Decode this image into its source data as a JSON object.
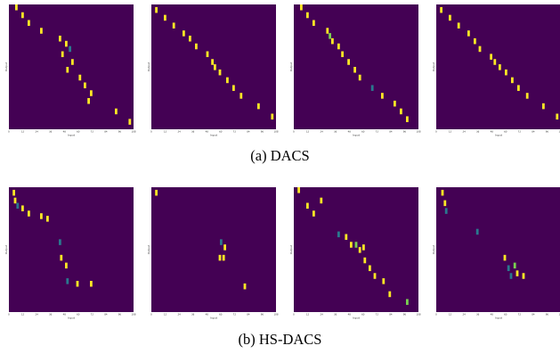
{
  "colors": {
    "background": "#440154",
    "yellow": "#fde725",
    "green": "#7ad151",
    "teal": "#2a788e"
  },
  "groups": [
    {
      "caption": "(a) DACS"
    },
    {
      "caption": "(b) HS-DACS"
    }
  ],
  "chart_data": [
    {
      "type": "heatmap",
      "xlabel": "Input",
      "ylabel": "Output",
      "xticks": [
        "0",
        "12",
        "24",
        "36",
        "48",
        "60",
        "72",
        "84",
        "96",
        "108"
      ],
      "cells": [
        [
          0.5,
          0,
          1
        ],
        [
          1,
          3,
          1
        ],
        [
          1.5,
          6,
          1
        ],
        [
          2.5,
          9,
          1
        ],
        [
          4,
          12,
          1
        ],
        [
          4.5,
          14,
          1
        ],
        [
          4.8,
          16,
          0.5
        ],
        [
          4.2,
          18,
          1
        ],
        [
          5,
          21,
          1
        ],
        [
          4.6,
          24,
          1
        ],
        [
          5.6,
          27,
          1
        ],
        [
          6,
          30,
          1
        ],
        [
          6.5,
          33,
          1
        ],
        [
          6.3,
          36,
          1
        ],
        [
          8.5,
          40,
          1
        ],
        [
          9.6,
          44,
          1
        ]
      ]
    },
    {
      "type": "heatmap",
      "xlabel": "Input",
      "ylabel": "Output",
      "xticks": [
        "0",
        "12",
        "24",
        "36",
        "48",
        "60",
        "72",
        "84",
        "96",
        "108"
      ],
      "cells": [
        [
          0.3,
          1,
          1
        ],
        [
          1,
          4,
          1
        ],
        [
          1.7,
          7,
          1
        ],
        [
          2.5,
          10,
          1
        ],
        [
          3,
          12,
          1
        ],
        [
          3.5,
          15,
          1
        ],
        [
          4.4,
          18,
          1
        ],
        [
          4.8,
          21,
          1
        ],
        [
          5,
          23,
          1
        ],
        [
          5.4,
          25,
          1
        ],
        [
          6,
          28,
          1
        ],
        [
          6.5,
          31,
          1
        ],
        [
          7.1,
          34,
          1
        ],
        [
          8.5,
          38,
          1
        ],
        [
          9.6,
          42,
          1
        ]
      ]
    },
    {
      "type": "heatmap",
      "xlabel": "Input",
      "ylabel": "Output",
      "xticks": [
        "0",
        "12",
        "24",
        "36",
        "48",
        "60",
        "72",
        "84",
        "96",
        "108"
      ],
      "cells": [
        [
          0.5,
          0,
          1
        ],
        [
          1,
          3,
          1
        ],
        [
          1.5,
          6,
          1
        ],
        [
          2.6,
          9,
          1
        ],
        [
          2.8,
          11,
          0.7
        ],
        [
          3,
          13,
          1
        ],
        [
          3.5,
          15,
          1
        ],
        [
          3.8,
          18,
          1
        ],
        [
          4.3,
          21,
          1
        ],
        [
          4.8,
          24,
          1
        ],
        [
          5.2,
          27,
          1
        ],
        [
          6.2,
          31,
          0.4
        ],
        [
          7,
          34,
          1
        ],
        [
          8,
          37,
          1
        ],
        [
          8.5,
          40,
          1
        ],
        [
          9,
          43,
          1
        ]
      ]
    },
    {
      "type": "heatmap",
      "xlabel": "Input",
      "ylabel": "Output",
      "xticks": [
        "0",
        "12",
        "24",
        "36",
        "48",
        "60",
        "72",
        "84",
        "96",
        "108"
      ],
      "cells": [
        [
          0.3,
          1,
          1
        ],
        [
          1,
          4,
          1
        ],
        [
          1.7,
          7,
          1
        ],
        [
          2.5,
          10,
          1
        ],
        [
          3,
          13,
          1
        ],
        [
          3.4,
          16,
          1
        ],
        [
          4.3,
          19,
          1
        ],
        [
          4.6,
          21,
          1
        ],
        [
          5,
          23,
          1
        ],
        [
          5.5,
          25,
          1
        ],
        [
          6,
          28,
          1
        ],
        [
          6.5,
          31,
          1
        ],
        [
          7.2,
          34,
          1
        ],
        [
          8.5,
          38,
          1
        ],
        [
          9.6,
          42,
          1
        ]
      ]
    },
    {
      "type": "heatmap",
      "xlabel": "Input",
      "ylabel": "Output",
      "xticks": [
        "0",
        "12",
        "24",
        "36",
        "48",
        "60",
        "72",
        "84",
        "96",
        "108"
      ],
      "cells": [
        [
          0.3,
          1,
          1
        ],
        [
          0.4,
          4,
          1
        ],
        [
          0.6,
          6,
          0.5
        ],
        [
          1,
          7,
          1
        ],
        [
          1.5,
          9,
          1
        ],
        [
          2.5,
          10,
          1
        ],
        [
          3,
          11,
          1
        ],
        [
          4,
          20,
          0.5
        ],
        [
          4.1,
          26,
          1
        ],
        [
          4.5,
          29,
          1
        ],
        [
          4.6,
          35,
          0.5
        ],
        [
          5.4,
          36,
          1
        ],
        [
          6.5,
          36,
          1
        ]
      ]
    },
    {
      "type": "heatmap",
      "xlabel": "Input",
      "ylabel": "Output",
      "xticks": [
        "0",
        "12",
        "24",
        "36",
        "48",
        "60",
        "72",
        "84",
        "96",
        "108"
      ],
      "cells": [
        [
          0.3,
          1,
          1
        ],
        [
          5.5,
          20,
          0.4
        ],
        [
          5.8,
          22,
          1
        ],
        [
          5.4,
          26,
          1
        ],
        [
          5.7,
          26,
          1
        ],
        [
          7.4,
          37,
          1
        ]
      ]
    },
    {
      "type": "heatmap",
      "xlabel": "Input",
      "ylabel": "Output",
      "xticks": [
        "0",
        "12",
        "24",
        "36",
        "48",
        "60",
        "72",
        "84",
        "96",
        "108"
      ],
      "cells": [
        [
          0.3,
          0,
          1
        ],
        [
          1,
          6,
          1
        ],
        [
          1.5,
          9,
          1
        ],
        [
          2.1,
          4,
          1
        ],
        [
          3.5,
          17,
          0.5
        ],
        [
          4.1,
          18,
          1
        ],
        [
          4.5,
          21,
          1
        ],
        [
          4.9,
          21,
          0.7
        ],
        [
          5.2,
          23,
          1
        ],
        [
          5.5,
          22,
          1
        ],
        [
          5.6,
          27,
          1
        ],
        [
          6,
          30,
          1
        ],
        [
          6.4,
          33,
          1
        ],
        [
          7.1,
          35,
          1
        ],
        [
          7.6,
          40,
          1
        ],
        [
          9,
          43,
          0.7
        ]
      ]
    },
    {
      "type": "heatmap",
      "xlabel": "Input",
      "ylabel": "Output",
      "xticks": [
        "0",
        "12",
        "24",
        "36",
        "48",
        "60",
        "72",
        "84",
        "96",
        "108"
      ],
      "cells": [
        [
          0.4,
          1,
          1
        ],
        [
          0.6,
          5,
          1
        ],
        [
          0.7,
          8,
          0.4
        ],
        [
          3.2,
          16,
          0.5
        ],
        [
          5.4,
          26,
          1
        ],
        [
          5.7,
          30,
          0.5
        ],
        [
          6.2,
          29,
          0.7
        ],
        [
          6.4,
          32,
          1
        ],
        [
          5.9,
          33,
          0.4
        ],
        [
          6.9,
          33,
          1
        ]
      ]
    }
  ]
}
